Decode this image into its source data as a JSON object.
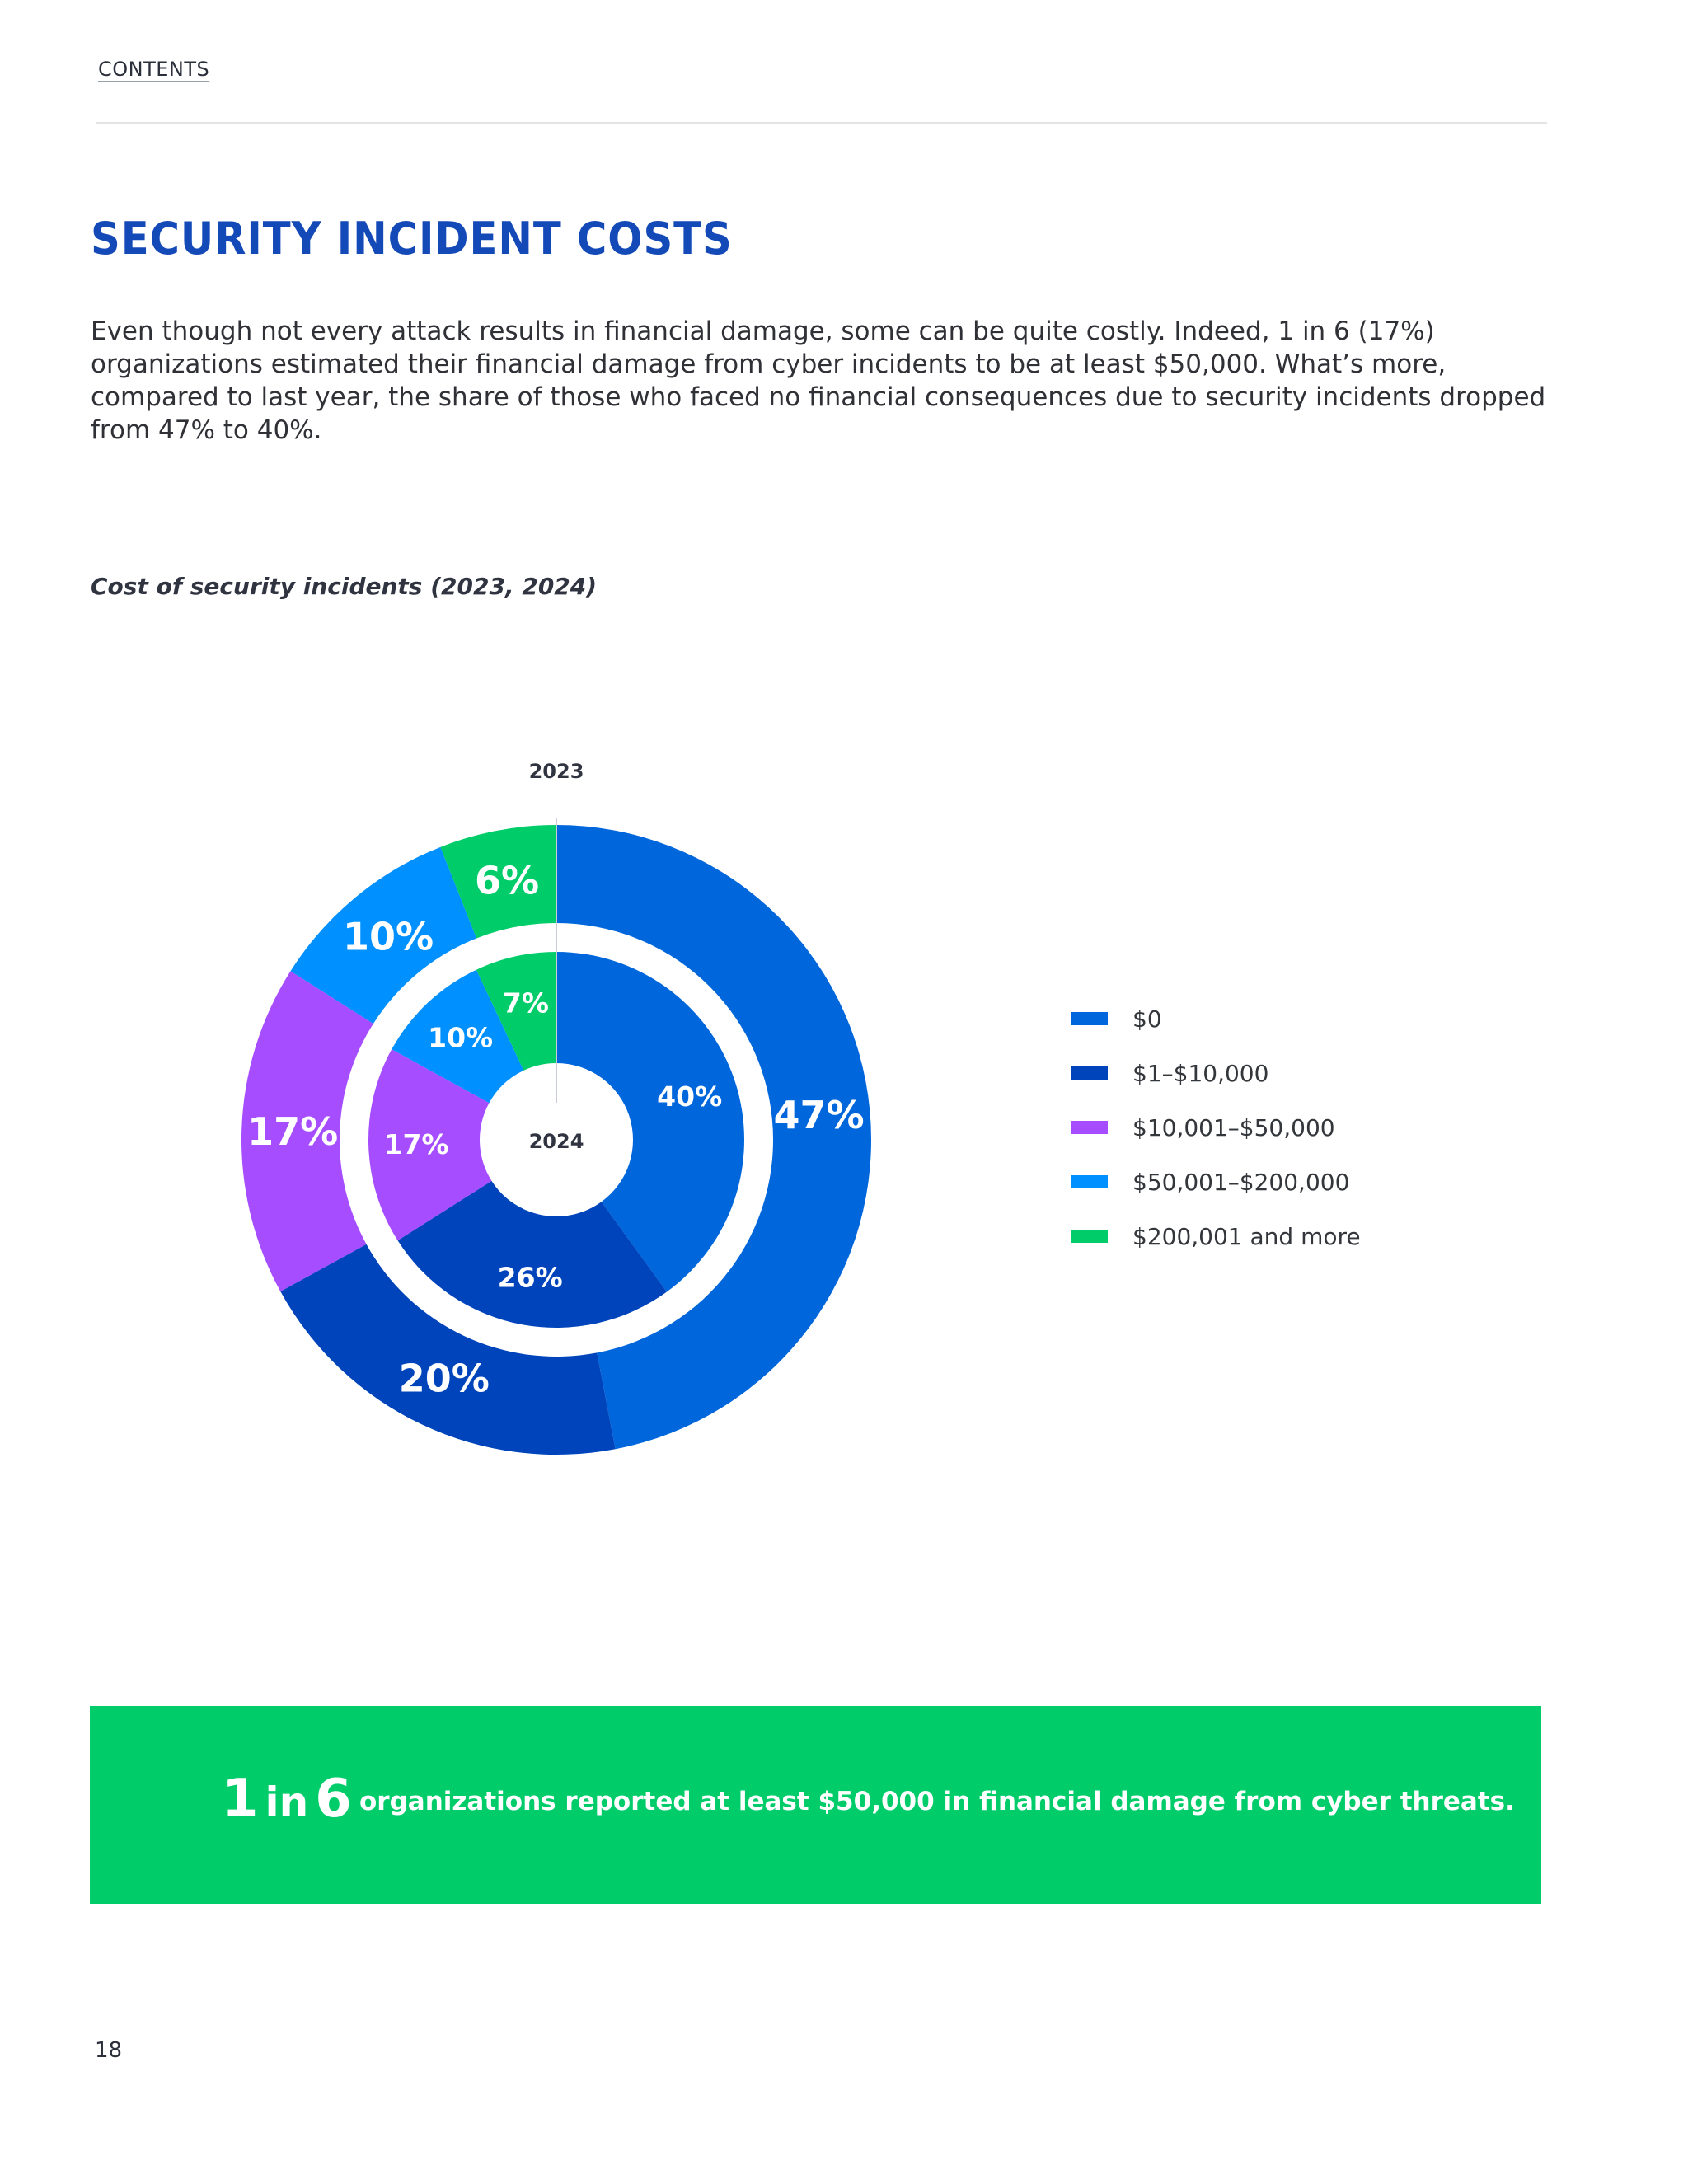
{
  "nav": {
    "contents_label": "CONTENTS"
  },
  "page": {
    "title": "SECURITY INCIDENT COSTS",
    "intro": "Even though not every attack results in financial damage, some can be quite costly. Indeed, 1 in 6 (17%) organizations estimated their financial damage from cyber incidents to be at least $50,000. What’s more, compared to last year, the share of those who faced no financial consequences due to security incidents dropped from 47% to 40%.",
    "page_number": "18"
  },
  "chart_data": {
    "type": "pie",
    "variant": "nested-donut",
    "title": "Cost of security incidents (2023, 2024)",
    "categories": [
      "$0",
      "$1–$10,000",
      "$10,001–$50,000",
      "$50,001–$200,000",
      "$200,001 and more"
    ],
    "colors": [
      "#0066db",
      "#0044bb",
      "#a54dff",
      "#0090ff",
      "#00cc6a"
    ],
    "series": [
      {
        "name": "2023",
        "ring": "outer",
        "values": [
          47,
          20,
          17,
          10,
          6
        ],
        "labels": [
          "47%",
          "20%",
          "17%",
          "10%",
          "6%"
        ]
      },
      {
        "name": "2024",
        "ring": "inner",
        "values": [
          40,
          26,
          17,
          10,
          7
        ],
        "labels": [
          "40%",
          "26%",
          "17%",
          "10%",
          "7%"
        ]
      }
    ],
    "legend_position": "right"
  },
  "callout": {
    "figure_big_1": "1",
    "figure_mid": "in",
    "figure_big_2": "6",
    "text": "organizations reported at least $50,000 in financial damage from cyber threats.",
    "background_color": "#00cc6a"
  }
}
